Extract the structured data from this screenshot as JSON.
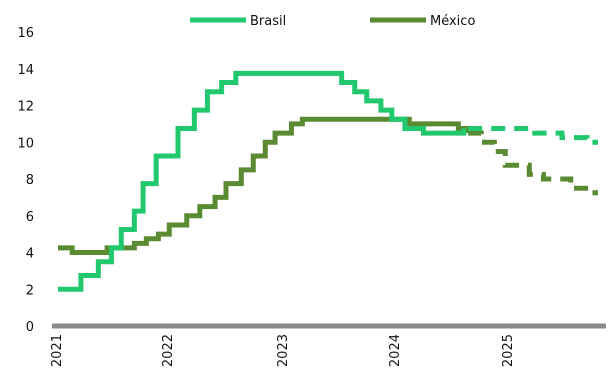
{
  "chart_data": {
    "type": "line",
    "step": true,
    "ylim": [
      0,
      16
    ],
    "y_ticks": [
      "0",
      "2",
      "4",
      "6",
      "8",
      "10",
      "12",
      "14",
      "16"
    ],
    "x_ticks": [
      "2021",
      "2022",
      "2023",
      "2024",
      "2025"
    ],
    "xlim": [
      2021.0,
      2025.95
    ],
    "legend_position": "top",
    "series": [
      {
        "name": "Brasil",
        "color": "#22c86e",
        "points": [
          [
            2021.0,
            2.0
          ],
          [
            2021.21,
            2.75
          ],
          [
            2021.37,
            3.5
          ],
          [
            2021.49,
            4.25
          ],
          [
            2021.58,
            5.25
          ],
          [
            2021.7,
            6.25
          ],
          [
            2021.78,
            7.75
          ],
          [
            2021.9,
            9.25
          ],
          [
            2022.1,
            10.75
          ],
          [
            2022.25,
            11.75
          ],
          [
            2022.37,
            12.75
          ],
          [
            2022.5,
            13.25
          ],
          [
            2022.63,
            13.75
          ],
          [
            2023.6,
            13.25
          ],
          [
            2023.72,
            12.75
          ],
          [
            2023.83,
            12.25
          ],
          [
            2023.96,
            11.75
          ],
          [
            2024.06,
            11.25
          ],
          [
            2024.18,
            10.75
          ],
          [
            2024.35,
            10.5
          ],
          [
            2024.72,
            10.75
          ]
        ],
        "forecast": [
          [
            2024.76,
            10.75
          ],
          [
            2025.1,
            10.75
          ],
          [
            2025.37,
            10.5
          ],
          [
            2025.62,
            10.25
          ],
          [
            2025.85,
            10.0
          ],
          [
            2025.95,
            10.0
          ]
        ]
      },
      {
        "name": "México",
        "color": "#5a8a32",
        "points": [
          [
            2021.0,
            4.25
          ],
          [
            2021.13,
            4.0
          ],
          [
            2021.45,
            4.25
          ],
          [
            2021.7,
            4.5
          ],
          [
            2021.81,
            4.75
          ],
          [
            2021.92,
            5.0
          ],
          [
            2022.02,
            5.5
          ],
          [
            2022.18,
            6.0
          ],
          [
            2022.3,
            6.5
          ],
          [
            2022.44,
            7.0
          ],
          [
            2022.54,
            7.75
          ],
          [
            2022.68,
            8.5
          ],
          [
            2022.79,
            9.25
          ],
          [
            2022.9,
            10.0
          ],
          [
            2022.99,
            10.5
          ],
          [
            2023.14,
            11.0
          ],
          [
            2023.24,
            11.25
          ],
          [
            2024.22,
            11.0
          ],
          [
            2024.67,
            10.75
          ],
          [
            2024.76,
            10.5
          ]
        ],
        "forecast": [
          [
            2024.76,
            10.5
          ],
          [
            2024.88,
            10.0
          ],
          [
            2025.0,
            9.5
          ],
          [
            2025.1,
            8.75
          ],
          [
            2025.32,
            8.25
          ],
          [
            2025.45,
            8.0
          ],
          [
            2025.7,
            7.5
          ],
          [
            2025.88,
            7.25
          ],
          [
            2025.95,
            7.25
          ]
        ]
      }
    ]
  }
}
